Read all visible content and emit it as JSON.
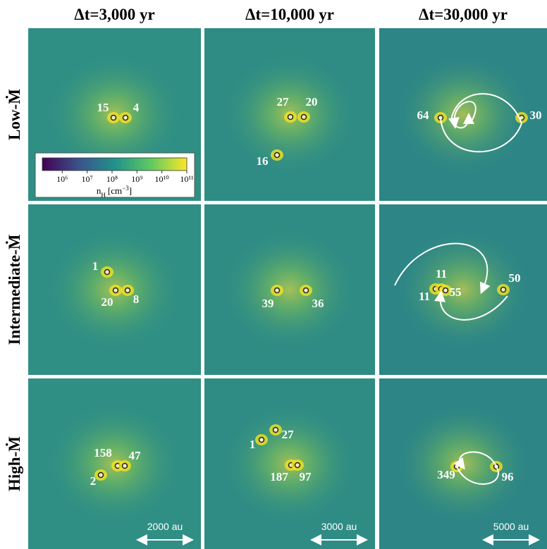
{
  "columns": [
    "Δt=3,000 yr",
    "Δt=10,000 yr",
    "Δt=30,000 yr"
  ],
  "rows": [
    "Low-Ṁ",
    "Intermediate-Ṁ",
    "High-Ṁ"
  ],
  "panels": [
    {
      "sinks": [
        "15",
        "4"
      ]
    },
    {
      "sinks": [
        "27",
        "20",
        "16"
      ]
    },
    {
      "sinks": [
        "64",
        "30"
      ]
    },
    {
      "sinks": [
        "1",
        "20",
        "8"
      ]
    },
    {
      "sinks": [
        "39",
        "36"
      ]
    },
    {
      "sinks": [
        "11",
        "11",
        "55",
        "50"
      ]
    },
    {
      "sinks": [
        "158",
        "47",
        "2"
      ]
    },
    {
      "sinks": [
        "27",
        "1",
        "187",
        "97"
      ]
    },
    {
      "sinks": [
        "349",
        "96"
      ]
    }
  ],
  "scale_bars": [
    "2000 au",
    "3000 au",
    "5000 au"
  ],
  "colorbar": {
    "range": [
      5.2,
      11
    ],
    "ticks": [
      {
        "value": 6,
        "label": "10⁶"
      },
      {
        "value": 7,
        "label": "10⁷"
      },
      {
        "value": 8,
        "label": "10⁸"
      },
      {
        "value": 9,
        "label": "10⁹"
      },
      {
        "value": 10,
        "label": "10¹⁰"
      },
      {
        "value": 11,
        "label": "10¹¹"
      }
    ],
    "label": {
      "symbol": "n",
      "subscript": "H",
      "unit": "[cm",
      "exponent": "−3",
      "close": "]"
    }
  }
}
